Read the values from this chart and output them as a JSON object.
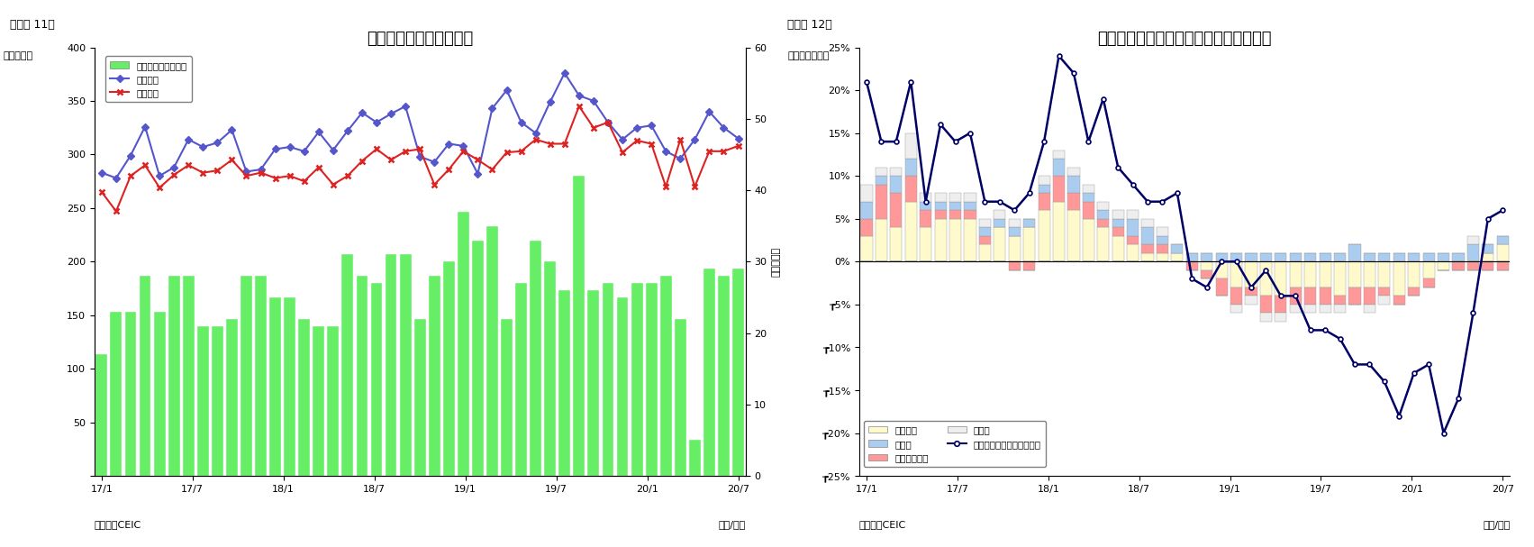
{
  "chart1": {
    "title": "シンガポール　貿易収支",
    "subtitle": "（図表 11）",
    "ylabel_left": "（億ドル）",
    "ylabel_right": "（億ドル）",
    "xlabel": "（年/月）",
    "source": "（資料）CEIC",
    "xlabels": [
      "17/1",
      "17/7",
      "18/1",
      "18/7",
      "19/1",
      "19/7",
      "20/1",
      "20/7"
    ],
    "ylim_left": [
      0,
      400
    ],
    "ylim_right": [
      0,
      60
    ],
    "yticks_left": [
      0,
      50,
      100,
      150,
      200,
      250,
      300,
      350,
      400
    ],
    "yticks_right": [
      0,
      10,
      20,
      30,
      40,
      50,
      60
    ],
    "bar_color": "#66EE66",
    "line1_color": "#5555CC",
    "line2_color": "#DD2222",
    "trade_balance": [
      17,
      23,
      23,
      28,
      23,
      28,
      28,
      21,
      21,
      22,
      28,
      28,
      25,
      25,
      22,
      21,
      21,
      31,
      28,
      27,
      31,
      31,
      22,
      28,
      30,
      37,
      33,
      35,
      22,
      27,
      33,
      30,
      26,
      42,
      26,
      27,
      25,
      27,
      27,
      28,
      22,
      5,
      29,
      28,
      29
    ],
    "exports": [
      283,
      278,
      299,
      326,
      280,
      288,
      314,
      307,
      311,
      323,
      284,
      286,
      305,
      307,
      303,
      321,
      304,
      322,
      339,
      330,
      338,
      345,
      298,
      293,
      310,
      308,
      282,
      343,
      360,
      330,
      320,
      349,
      376,
      355,
      350,
      330,
      314,
      325,
      327,
      303,
      296,
      314,
      340,
      325,
      315
    ],
    "imports": [
      265,
      247,
      280,
      290,
      269,
      281,
      290,
      283,
      285,
      295,
      280,
      283,
      278,
      280,
      275,
      288,
      272,
      280,
      294,
      305,
      295,
      303,
      305,
      272,
      286,
      303,
      295,
      286,
      302,
      303,
      314,
      310,
      310,
      345,
      325,
      330,
      302,
      313,
      310,
      270,
      314,
      270,
      303,
      303,
      308
    ]
  },
  "chart2": {
    "title": "シンガポール　輸出の伸び率（品目別）",
    "subtitle": "（図表 12）",
    "ylabel_left": "（前年同期比）",
    "xlabel": "（年/月）",
    "source": "（資料）CEIC",
    "xlabels": [
      "17/1",
      "17/7",
      "18/1",
      "18/7",
      "19/1",
      "19/7",
      "20/1",
      "20/7"
    ],
    "ylim": [
      -0.25,
      0.25
    ],
    "yticks": [
      0.25,
      0.2,
      0.15,
      0.1,
      0.05,
      0.0,
      -0.05,
      -0.1,
      -0.15,
      -0.2,
      -0.25
    ],
    "ytick_labels": [
      "25%",
      "20%",
      "15%",
      "10%",
      "5%",
      "0%",
      "┲5%",
      "┲10%",
      "┲15%",
      "┲20%",
      "┲25%"
    ],
    "colors": {
      "electronics": "#FFFACC",
      "pharma": "#AACCEE",
      "petrochem": "#FF9999",
      "other": "#EEEEEE",
      "line": "#000066"
    },
    "electronics": [
      0.03,
      0.05,
      0.04,
      0.07,
      0.04,
      0.05,
      0.05,
      0.05,
      0.02,
      0.04,
      0.03,
      0.04,
      0.06,
      0.07,
      0.06,
      0.05,
      0.04,
      0.03,
      0.02,
      0.01,
      0.01,
      0.01,
      0.0,
      -0.01,
      -0.02,
      -0.03,
      -0.03,
      -0.04,
      -0.04,
      -0.03,
      -0.03,
      -0.03,
      -0.04,
      -0.03,
      -0.03,
      -0.03,
      -0.04,
      -0.03,
      -0.02,
      -0.01,
      0.0,
      0.0,
      0.01,
      0.02
    ],
    "petrochem": [
      0.02,
      0.04,
      0.04,
      0.03,
      0.02,
      0.01,
      0.01,
      0.01,
      0.01,
      0.0,
      -0.01,
      -0.01,
      0.02,
      0.03,
      0.02,
      0.02,
      0.01,
      0.01,
      0.01,
      0.01,
      0.01,
      0.0,
      -0.01,
      -0.01,
      -0.02,
      -0.02,
      -0.01,
      -0.02,
      -0.02,
      -0.02,
      -0.02,
      -0.02,
      -0.01,
      -0.02,
      -0.02,
      -0.01,
      -0.01,
      -0.01,
      -0.01,
      0.0,
      -0.01,
      -0.01,
      -0.01,
      -0.01
    ],
    "pharma": [
      0.02,
      0.01,
      0.02,
      0.02,
      0.01,
      0.01,
      0.01,
      0.01,
      0.01,
      0.01,
      0.01,
      0.01,
      0.01,
      0.02,
      0.02,
      0.01,
      0.01,
      0.01,
      0.02,
      0.02,
      0.01,
      0.01,
      0.01,
      0.01,
      0.01,
      0.01,
      0.01,
      0.01,
      0.01,
      0.01,
      0.01,
      0.01,
      0.01,
      0.02,
      0.01,
      0.01,
      0.01,
      0.01,
      0.01,
      0.01,
      0.01,
      0.02,
      0.01,
      0.01
    ],
    "other": [
      0.02,
      0.01,
      0.01,
      0.03,
      0.01,
      0.01,
      0.01,
      0.01,
      0.01,
      0.01,
      0.01,
      0.0,
      0.01,
      0.01,
      0.01,
      0.01,
      0.01,
      0.01,
      0.01,
      0.01,
      0.01,
      0.0,
      0.0,
      0.0,
      0.0,
      -0.01,
      -0.01,
      -0.01,
      -0.01,
      -0.01,
      -0.01,
      -0.01,
      -0.01,
      0.0,
      -0.01,
      -0.01,
      0.0,
      0.0,
      0.0,
      0.0,
      0.0,
      0.01,
      0.0,
      0.0
    ],
    "non_oil_line": [
      0.21,
      0.14,
      0.14,
      0.21,
      0.07,
      0.16,
      0.14,
      0.15,
      0.07,
      0.07,
      0.06,
      0.08,
      0.14,
      0.24,
      0.22,
      0.14,
      0.19,
      0.11,
      0.09,
      0.07,
      0.07,
      0.08,
      -0.02,
      -0.03,
      0.0,
      0.0,
      -0.03,
      -0.01,
      -0.04,
      -0.04,
      -0.08,
      -0.08,
      -0.09,
      -0.12,
      -0.12,
      -0.14,
      -0.18,
      -0.13,
      -0.12,
      -0.2,
      -0.16,
      -0.06,
      0.05,
      0.06
    ]
  }
}
